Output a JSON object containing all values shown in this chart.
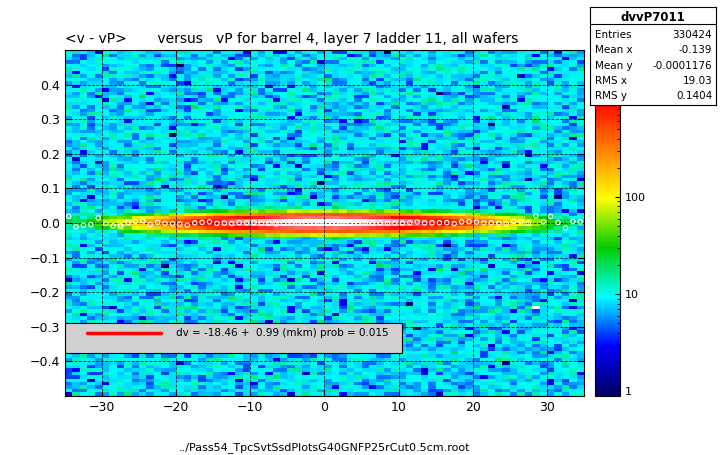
{
  "title": "<v - vP>       versus   vP for barrel 4, layer 7 ladder 11, all wafers",
  "xlabel": "../Pass54_TpcSvtSsdPlotsG40GNFP25rCut0.5cm.root",
  "stats_title": "dvvP7011",
  "entries": "330424",
  "mean_x": "-0.139",
  "mean_y": "-0.0001176",
  "rms_x": "19.03",
  "rms_y": "0.1404",
  "xlim": [
    -35,
    35
  ],
  "ylim": [
    -0.5,
    0.5
  ],
  "xbins": 70,
  "ybins": 100,
  "fit_label": "dv = -18.46 +  0.99 (mkm) prob = 0.015",
  "fit_slope": 0.99,
  "fit_intercept": -18.46
}
